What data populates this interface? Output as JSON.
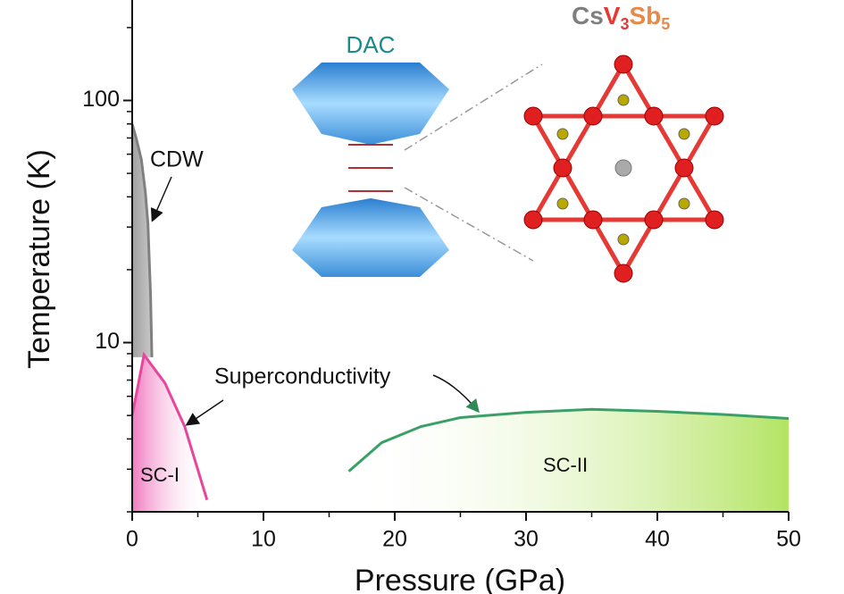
{
  "chart_data": {
    "type": "line",
    "x_label": "Pressure (GPa)",
    "y_label": "Temperature (K)",
    "xlim": [
      0,
      50
    ],
    "xticks": [
      0,
      10,
      20,
      30,
      40,
      50
    ],
    "xminor": [
      5,
      15,
      25,
      35,
      45
    ],
    "ylim": [
      2,
      260
    ],
    "ylog": true,
    "yticks": [
      10,
      100
    ],
    "yminor": [
      2,
      3,
      4,
      5,
      6,
      7,
      8,
      9,
      20,
      30,
      40,
      50,
      60,
      70,
      80,
      90,
      200
    ],
    "series": [
      {
        "name": "CDW",
        "color": "#808080",
        "fill": "grey",
        "x": [
          0,
          0.3,
          0.7,
          1.0,
          1.2,
          1.3,
          1.4,
          1.5
        ],
        "values": [
          80,
          70,
          57,
          42,
          31,
          22,
          15.8,
          8.7
        ]
      },
      {
        "name": "SC-I",
        "color": "#e8459c",
        "fill": "pink",
        "x": [
          0,
          0.9,
          2.5,
          4.0,
          5.7
        ],
        "values": [
          5.0,
          8.9,
          6.8,
          4.5,
          2.24
        ]
      },
      {
        "name": "SC-II",
        "color": "#3aa068",
        "fill": "green",
        "x": [
          16.5,
          19,
          22,
          25,
          30,
          35,
          40,
          45,
          50
        ],
        "values": [
          2.94,
          3.86,
          4.5,
          4.9,
          5.15,
          5.3,
          5.2,
          5.05,
          4.86
        ]
      }
    ],
    "annotations": {
      "cdw": "CDW",
      "sc": "Superconductivity",
      "sc1": "SC-I",
      "sc2": "SC-II",
      "dac": "DAC"
    },
    "formula": [
      {
        "text": "Cs",
        "color": "#7f7f7f"
      },
      {
        "text": "V",
        "color": "#e53935"
      },
      {
        "text": "3",
        "color": "#e53935",
        "sub": true
      },
      {
        "text": "Sb",
        "color": "#e8894a"
      },
      {
        "text": "5",
        "color": "#e8894a",
        "sub": true
      }
    ]
  }
}
